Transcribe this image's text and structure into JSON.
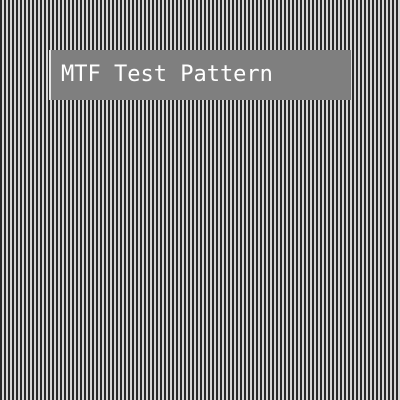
{
  "pattern": {
    "description_type": "vertical alternating line test pattern",
    "dark_color": "#2a2a2a",
    "light_color": "#d8d8d8"
  },
  "label": {
    "text": "MTF Test Pattern",
    "background_color": "#7f7f7f",
    "text_color": "#ffffff"
  }
}
